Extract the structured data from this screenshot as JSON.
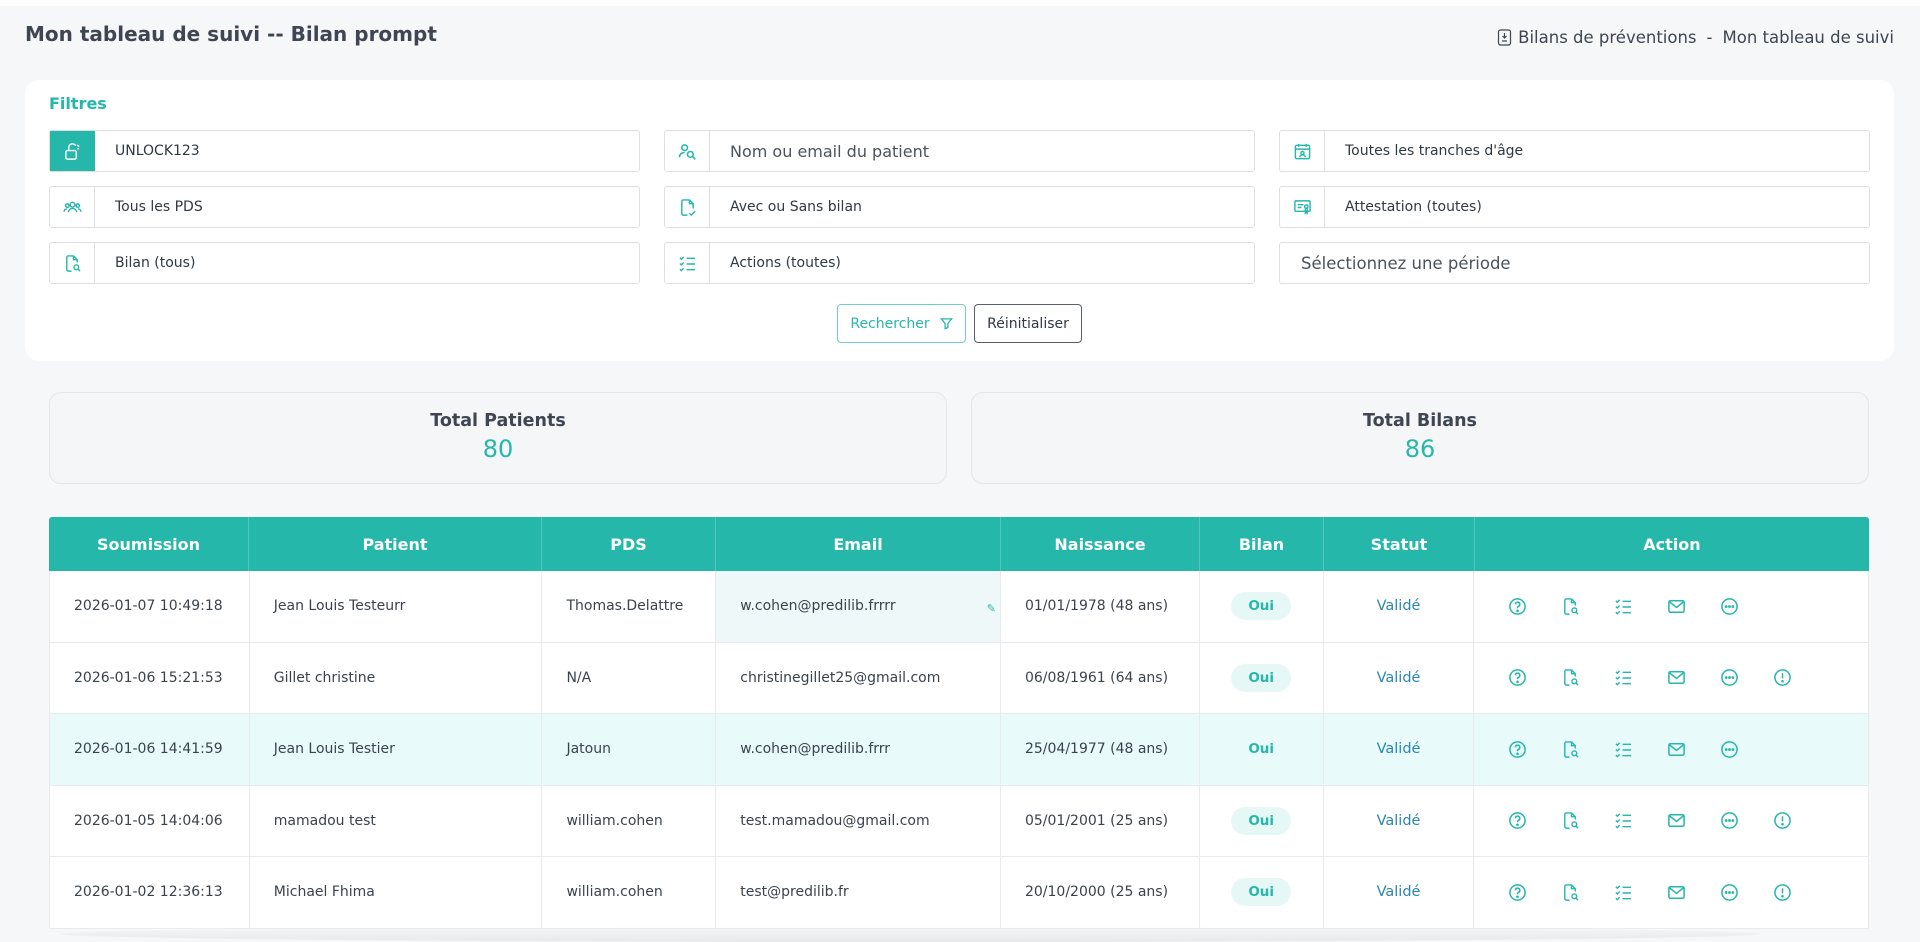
{
  "page": {
    "title": "Mon tableau de suivi -- Bilan prompt",
    "breadcrumb": [
      "Bilans de préventions",
      "-",
      "Mon tableau de suivi"
    ]
  },
  "filters": {
    "title": "Filtres",
    "code": "UNLOCK123",
    "patient_placeholder": "Nom ou email du patient",
    "age_range": "Toutes les tranches d'âge",
    "pds": "Tous les PDS",
    "with_bilan": "Avec ou Sans bilan",
    "attestation": "Attestation (toutes)",
    "bilan": "Bilan (tous)",
    "actions": "Actions (toutes)",
    "period_placeholder": "Sélectionnez une période",
    "search_label": "Rechercher",
    "reset_label": "Réinitialiser"
  },
  "stats": {
    "patients_label": "Total Patients",
    "patients_value": "80",
    "bilans_label": "Total Bilans",
    "bilans_value": "86"
  },
  "table": {
    "columns": [
      "Soumission",
      "Patient",
      "PDS",
      "Email",
      "Naissance",
      "Bilan",
      "Statut",
      "Action"
    ],
    "rows": [
      {
        "submitted": "2026-01-07 10:49:18",
        "patient": "Jean Louis Testeurr",
        "pds": "Thomas.Delattre",
        "email": "w.cohen@predilib.frrrr",
        "birth": "01/01/1978 (48 ans)",
        "bilan": "Oui",
        "status": "Validé"
      },
      {
        "submitted": "2026-01-06 15:21:53",
        "patient": "Gillet christine",
        "pds": "N/A",
        "email": "christinegillet25@gmail.com",
        "birth": "06/08/1961 (64 ans)",
        "bilan": "Oui",
        "status": "Validé"
      },
      {
        "submitted": "2026-01-06 14:41:59",
        "patient": "Jean Louis Testier",
        "pds": "Jatoun",
        "email": "w.cohen@predilib.frrr",
        "birth": "25/04/1977 (48 ans)",
        "bilan": "Oui",
        "status": "Validé"
      },
      {
        "submitted": "2026-01-05 14:04:06",
        "patient": "mamadou test",
        "pds": "william.cohen",
        "email": "test.mamadou@gmail.com",
        "birth": "05/01/2001 (25 ans)",
        "bilan": "Oui",
        "status": "Validé"
      },
      {
        "submitted": "2026-01-02 12:36:13",
        "patient": "Michael Fhima",
        "pds": "william.cohen",
        "email": "test@predilib.fr",
        "birth": "20/10/2000 (25 ans)",
        "bilan": "Oui",
        "status": "Validé"
      }
    ]
  },
  "colors": {
    "accent": "#26b7ab",
    "status": "#2d86b0",
    "highlight_row": "#e8fbfa"
  }
}
